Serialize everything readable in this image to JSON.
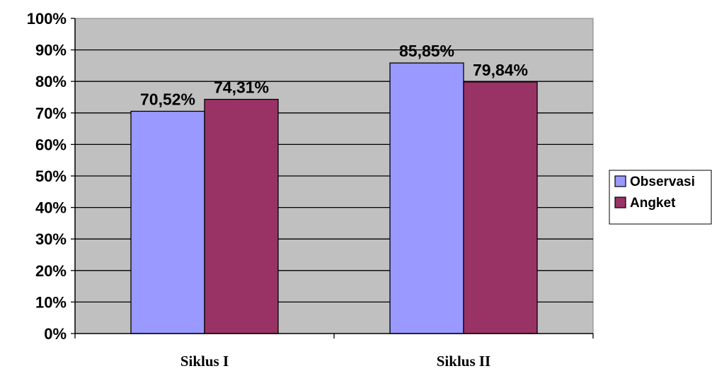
{
  "chart_data": {
    "type": "bar",
    "categories": [
      "Siklus I",
      "Siklus II"
    ],
    "series": [
      {
        "name": "Observasi",
        "values": [
          70.52,
          85.85
        ],
        "labels": [
          "70,52%",
          "85,85%"
        ],
        "color": "#9999FF"
      },
      {
        "name": "Angket",
        "values": [
          74.31,
          79.84
        ],
        "labels": [
          "74,31%",
          "79,84%"
        ],
        "color": "#993366"
      }
    ],
    "ylim": [
      0,
      100
    ],
    "yticks": [
      "0%",
      "10%",
      "20%",
      "30%",
      "40%",
      "50%",
      "60%",
      "70%",
      "80%",
      "90%",
      "100%"
    ],
    "grid": true,
    "plot_background": "#C0C0C0",
    "legend_position": "right"
  }
}
